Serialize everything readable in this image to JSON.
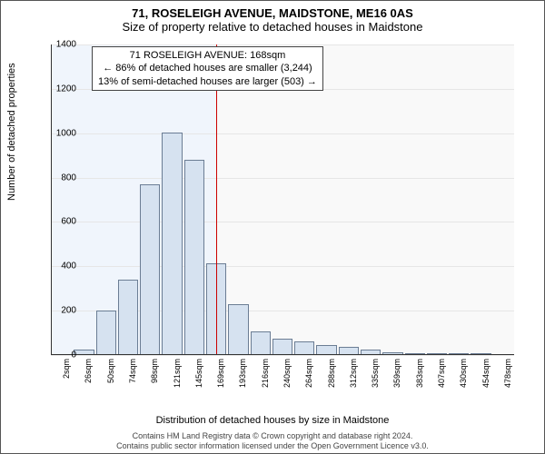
{
  "header": {
    "address": "71, ROSELEIGH AVENUE, MAIDSTONE, ME16 0AS",
    "subtitle": "Size of property relative to detached houses in Maidstone"
  },
  "info_box": {
    "line1": "71 ROSELEIGH AVENUE: 168sqm",
    "line2": "← 86% of detached houses are smaller (3,244)",
    "line3": "13% of semi-detached houses are larger (503) →"
  },
  "chart": {
    "type": "bar",
    "ylabel": "Number of detached properties",
    "xlabel": "Distribution of detached houses by size in Maidstone",
    "background_color": "#ffffff",
    "grid_color": "#e6e6e6",
    "bar_fill": "#d6e2f0",
    "bar_border": "#6b7d94",
    "shade_left_color": "#f0f5fc",
    "shade_right_color": "#f9f9f9",
    "marker_line_color": "#cc0000",
    "marker_x_index": 7,
    "ylim": [
      0,
      1400
    ],
    "yticks": [
      0,
      200,
      400,
      600,
      800,
      1000,
      1200,
      1400
    ],
    "xticks": [
      "2sqm",
      "26sqm",
      "50sqm",
      "74sqm",
      "98sqm",
      "121sqm",
      "145sqm",
      "169sqm",
      "193sqm",
      "216sqm",
      "240sqm",
      "264sqm",
      "288sqm",
      "312sqm",
      "335sqm",
      "359sqm",
      "383sqm",
      "407sqm",
      "430sqm",
      "454sqm",
      "478sqm"
    ],
    "values": [
      0,
      25,
      200,
      340,
      770,
      1005,
      880,
      415,
      230,
      105,
      75,
      60,
      45,
      35,
      25,
      12,
      5,
      3,
      2,
      1,
      0
    ]
  },
  "footer": {
    "line1": "Contains HM Land Registry data © Crown copyright and database right 2024.",
    "line2": "Contains public sector information licensed under the Open Government Licence v3.0."
  }
}
